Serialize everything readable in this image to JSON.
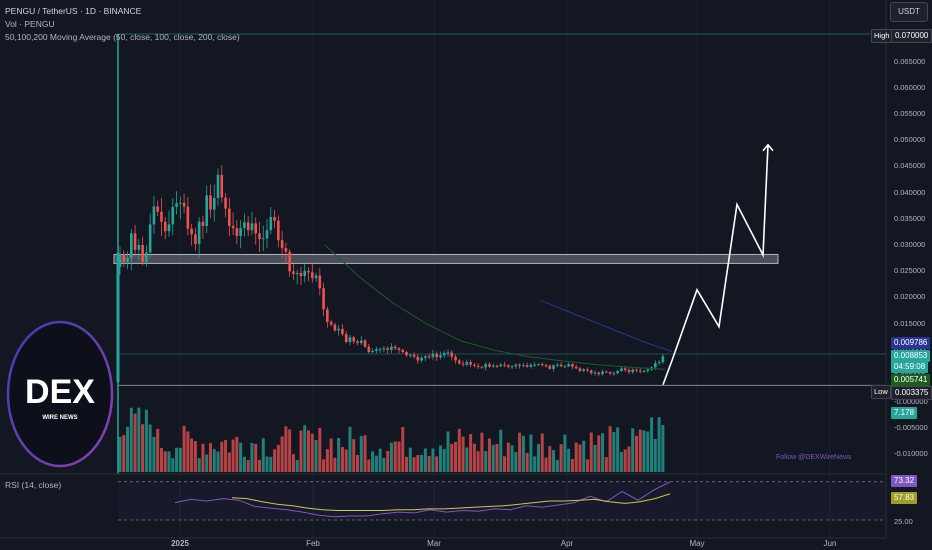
{
  "header": {
    "symbol_line": "PENGU / TetherUS · 1D · BINANCE",
    "vol_line": "Vol · PENGU",
    "ma_line": "50,100,200 Moving Average (50, close, 100, close, 200, close)",
    "rsi_line": "RSI (14, close)"
  },
  "currency_button": "USDT",
  "watermark": {
    "brand": "DEX",
    "tagline": "WIRE NEWS"
  },
  "follow_text": "Follow @DEXWireNews",
  "markers": {
    "high_label": "High",
    "low_label": "Low"
  },
  "price_tags": {
    "high": "0.070000",
    "ma": "0.009786",
    "last": "0.008853",
    "countdown": "04:59:08",
    "ma2": "0.005741",
    "low": "0.003375",
    "volume": "7.178",
    "rsi": "73.32",
    "rsi_ma": "57.83"
  },
  "colors": {
    "up": "#26a69a",
    "down": "#ef5350",
    "background": "#131722",
    "ma50": "#1b5e20",
    "ma100": "#283593",
    "rsi": "#7e57c2",
    "rsi_ma": "#c9c94a"
  },
  "chart_data": [
    {
      "type": "candlestick",
      "title": "PENGU / TetherUS · 1D · BINANCE",
      "x_ticks": [
        "2025",
        "Feb",
        "Mar",
        "Apr",
        "May",
        "Jun"
      ],
      "y_ticks": [
        "0.070000",
        "0.065000",
        "0.060000",
        "0.055000",
        "0.050000",
        "0.045000",
        "0.040000",
        "0.035000",
        "0.030000",
        "0.025000",
        "0.020000",
        "0.015000",
        "0.010000",
        "0.005000",
        "0.000000",
        "-0.000000",
        "-0.005000",
        "-0.010000"
      ],
      "ylim": [
        -0.0125,
        0.071
      ],
      "series": [
        {
          "name": "Close",
          "values": [
            0.0283,
            0.0268,
            0.0275,
            0.0322,
            0.0291,
            0.03,
            0.0268,
            0.0286,
            0.0339,
            0.0373,
            0.0363,
            0.0344,
            0.0326,
            0.0339,
            0.0372,
            0.0379,
            0.038,
            0.0373,
            0.0331,
            0.032,
            0.0302,
            0.0344,
            0.0336,
            0.0394,
            0.0367,
            0.0389,
            0.0433,
            0.039,
            0.0369,
            0.0336,
            0.0332,
            0.0317,
            0.0332,
            0.0343,
            0.0328,
            0.0341,
            0.0322,
            0.0311,
            0.0313,
            0.0328,
            0.0353,
            0.0346,
            0.0309,
            0.0294,
            0.0287,
            0.025,
            0.0245,
            0.0247,
            0.0241,
            0.0251,
            0.0248,
            0.0237,
            0.0242,
            0.0218,
            0.0178,
            0.0154,
            0.0149,
            0.0138,
            0.0141,
            0.0131,
            0.0116,
            0.0125,
            0.0117,
            0.0114,
            0.0119,
            0.0107,
            0.0097,
            0.0099,
            0.0102,
            0.0103,
            0.0104,
            0.0101,
            0.0107,
            0.0104,
            0.0101,
            0.0097,
            0.0091,
            0.0092,
            0.0088,
            0.0081,
            0.0086,
            0.0089,
            0.0088,
            0.0094,
            0.0087,
            0.0091,
            0.0095,
            0.0096,
            0.0088,
            0.0081,
            0.0075,
            0.0073,
            0.0078,
            0.0073,
            0.0071,
            0.0069,
            0.0068,
            0.0074,
            0.0069,
            0.0071,
            0.007,
            0.0073,
            0.0072,
            0.0069,
            0.007,
            0.0073,
            0.0071,
            0.0072,
            0.0069,
            0.0073,
            0.0073,
            0.0074,
            0.0072,
            0.0071,
            0.0065,
            0.0072,
            0.0073,
            0.007,
            0.007,
            0.0074,
            0.0069,
            0.0066,
            0.0061,
            0.0064,
            0.0062,
            0.0057,
            0.0058,
            0.0055,
            0.006,
            0.0059,
            0.0056,
            0.0057,
            0.0061,
            0.0066,
            0.0063,
            0.0059,
            0.0064,
            0.0062,
            0.006,
            0.0061,
            0.0064,
            0.0068,
            0.0076,
            0.0078,
            0.0089
          ]
        },
        {
          "name": "MA (50)",
          "values": [
            0.03,
            0.024,
            0.019,
            0.015,
            0.0118,
            0.01,
            0.0088,
            0.008,
            0.0073,
            0.0068,
            0.0064
          ]
        },
        {
          "name": "MA (100)",
          "values": [
            0.0195,
            0.0175,
            0.0155,
            0.0135,
            0.0115,
            0.0098
          ]
        },
        {
          "name": "Volume"
        },
        {
          "name": "RSI (14)",
          "values": [
            47,
            51,
            49,
            52,
            50,
            42,
            40,
            38,
            35,
            31,
            29,
            30,
            30,
            33,
            35,
            34,
            38,
            35,
            37,
            36,
            39,
            38,
            43,
            41,
            44,
            47,
            55,
            48,
            61,
            50,
            63,
            73
          ]
        },
        {
          "name": "RSI MA",
          "values": [
            53,
            52,
            48,
            45,
            43,
            40,
            38,
            37,
            37,
            37,
            37,
            38,
            38,
            39,
            39,
            40,
            41,
            42,
            43,
            45,
            47,
            49,
            49,
            50,
            51,
            48,
            46,
            48,
            52,
            58
          ]
        }
      ],
      "levels": {
        "high": 0.07,
        "low": 0.003375,
        "resistance_zone": [
          0.0265,
          0.0282
        ]
      },
      "projection": {
        "name": "Projected path",
        "values": [
          0.0035,
          0.0081,
          0.0215,
          0.0145,
          0.0377,
          0.0281,
          0.049
        ]
      },
      "rsi_levels": [
        73.32,
        57.83,
        25.0
      ]
    }
  ]
}
